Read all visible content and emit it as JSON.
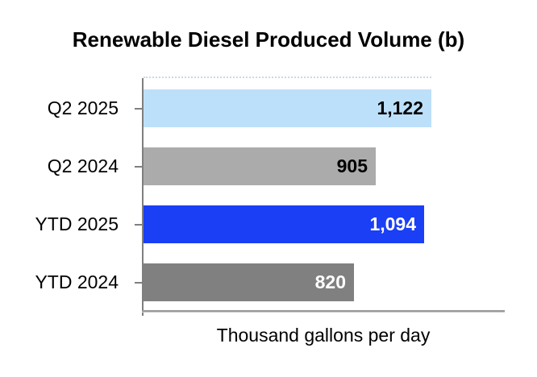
{
  "chart_data": {
    "type": "bar",
    "orientation": "horizontal",
    "title": "Renewable Diesel Produced Volume (b)",
    "xlabel": "Thousand gallons per day",
    "categories": [
      "Q2 2025",
      "Q2 2024",
      "YTD 2025",
      "YTD 2024"
    ],
    "values": [
      1122,
      905,
      1094,
      820
    ],
    "value_labels": [
      "1,122",
      "905",
      "1,094",
      "820"
    ],
    "bar_colors": [
      "#BDE0FA",
      "#ABABAB",
      "#1A3FF5",
      "#808080"
    ],
    "value_label_colors": [
      "#000000",
      "#000000",
      "#FFFFFF",
      "#FFFFFF"
    ],
    "xlim": [
      0,
      1122
    ],
    "grid": false,
    "legend": false,
    "axis_color": "#7F7F7F"
  }
}
